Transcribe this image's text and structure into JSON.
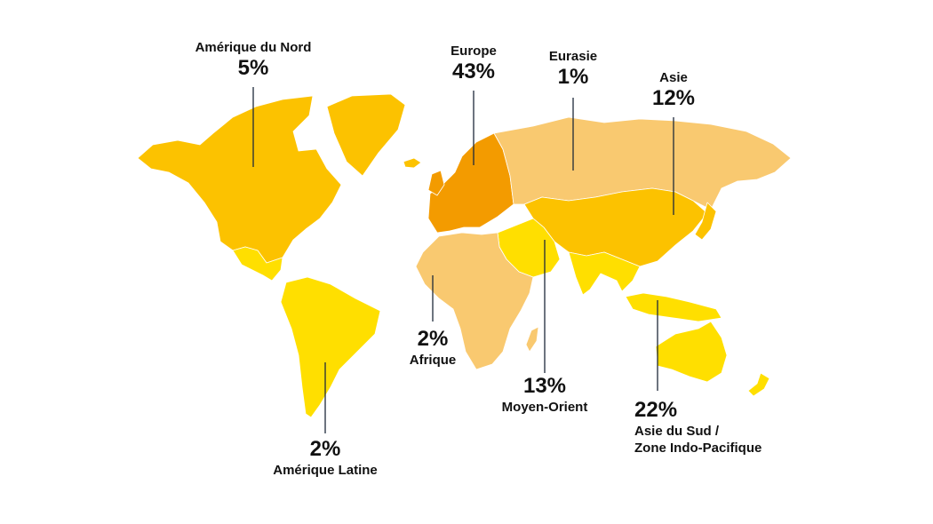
{
  "colors": {
    "north_america": "#fcc200",
    "latin_america": "#ffdf00",
    "europe": "#f39b00",
    "eurasia": "#f9c970",
    "asia": "#fcc200",
    "south_asia_indo_pacific": "#ffdf00",
    "africa": "#f9c970",
    "middle_east": "#ffdf00",
    "leader_line": "#1e2a3a"
  },
  "regions": [
    {
      "id": "north-america",
      "name": "Amérique du Nord",
      "share": "5%",
      "value": 5
    },
    {
      "id": "europe",
      "name": "Europe",
      "share": "43%",
      "value": 43
    },
    {
      "id": "eurasia",
      "name": "Eurasie",
      "share": "1%",
      "value": 1
    },
    {
      "id": "asia",
      "name": "Asie",
      "share": "12%",
      "value": 12
    },
    {
      "id": "africa",
      "name": "Afrique",
      "share": "2%",
      "value": 2
    },
    {
      "id": "middle-east",
      "name": "Moyen-Orient",
      "share": "13%",
      "value": 13
    },
    {
      "id": "south-asia",
      "name_line1": "Asie du Sud /",
      "name_line2": "Zone Indo-Pacifique",
      "share": "22%",
      "value": 22
    },
    {
      "id": "latin-america",
      "name": "Amérique Latine",
      "share": "2%",
      "value": 2
    }
  ]
}
